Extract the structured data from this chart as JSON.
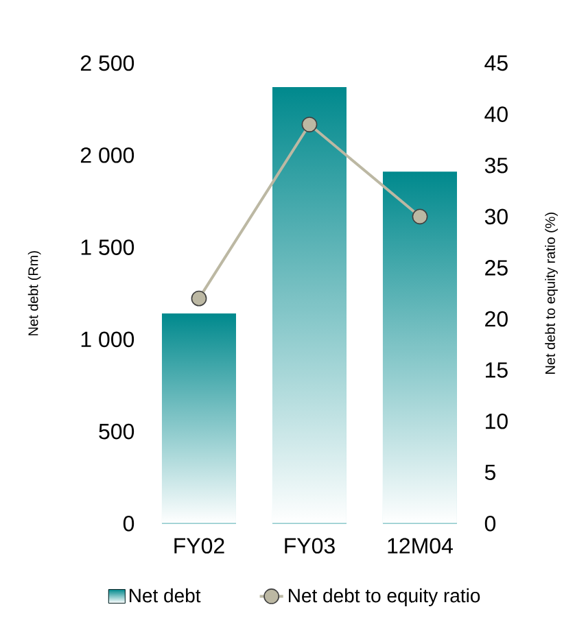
{
  "chart_data": {
    "type": "bar",
    "categories": [
      "FY02",
      "FY03",
      "12M04"
    ],
    "series": [
      {
        "name": "Net debt",
        "color": "#00898d",
        "values": [
          1140,
          2370,
          1910
        ]
      },
      {
        "name": "Net debt to equity ratio",
        "type": "line",
        "axis": "y2",
        "color": "#bcb8a3",
        "values": [
          22,
          39,
          30
        ]
      }
    ],
    "ylabel": "Net debt (Rm)",
    "y2label": "Net debt to equity ratio (%)",
    "ylim": [
      0,
      2500
    ],
    "yticks": [
      0,
      500,
      {
        "value": 1000,
        "label": "1 000"
      },
      {
        "value": 1500,
        "label": "1 500"
      },
      {
        "value": 2000,
        "label": "2 000"
      },
      {
        "value": 2500,
        "label": "2 500"
      }
    ],
    "y2lim": [
      0,
      45
    ],
    "y2ticks": [
      0,
      5,
      10,
      15,
      20,
      25,
      30,
      35,
      40,
      45
    ],
    "legend": "bottom",
    "marker": "circle"
  }
}
